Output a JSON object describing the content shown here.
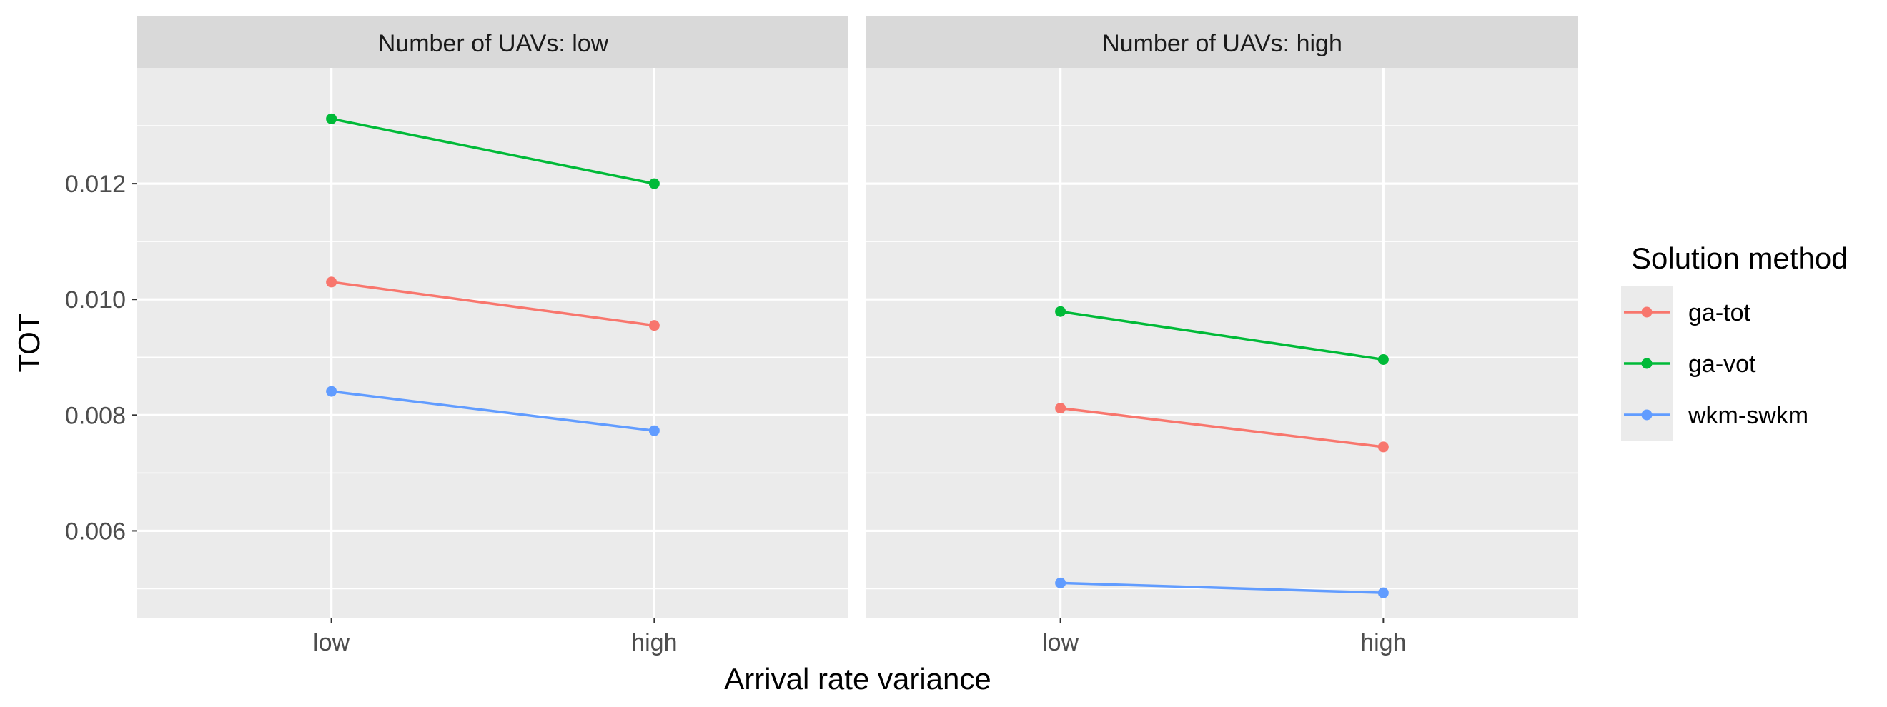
{
  "chart_data": {
    "type": "line",
    "x_label": "Arrival rate variance",
    "y_label": "TOT",
    "categories": [
      "low",
      "high"
    ],
    "ylim": [
      0.0045,
      0.014
    ],
    "y_ticks": [
      0.006,
      0.008,
      0.01,
      0.012
    ],
    "y_tick_labels": [
      "0.006",
      "0.008",
      "0.010",
      "0.012"
    ],
    "grid": true,
    "legend": {
      "title": "Solution method",
      "placement": "right",
      "entries": [
        "ga-tot",
        "ga-vot",
        "wkm-swkm"
      ]
    },
    "panels": [
      {
        "strip": "Number of UAVs: low",
        "series": [
          {
            "name": "ga-tot",
            "color": "#F8766D",
            "values": [
              0.0103,
              0.00955
            ]
          },
          {
            "name": "ga-vot",
            "color": "#00BA38",
            "values": [
              0.01312,
              0.012
            ]
          },
          {
            "name": "wkm-swkm",
            "color": "#619CFF",
            "values": [
              0.00841,
              0.00773
            ]
          }
        ]
      },
      {
        "strip": "Number of UAVs: high",
        "series": [
          {
            "name": "ga-tot",
            "color": "#F8766D",
            "values": [
              0.00812,
              0.00745
            ]
          },
          {
            "name": "ga-vot",
            "color": "#00BA38",
            "values": [
              0.00979,
              0.00896
            ]
          },
          {
            "name": "wkm-swkm",
            "color": "#619CFF",
            "values": [
              0.0051,
              0.00493
            ]
          }
        ]
      }
    ]
  }
}
